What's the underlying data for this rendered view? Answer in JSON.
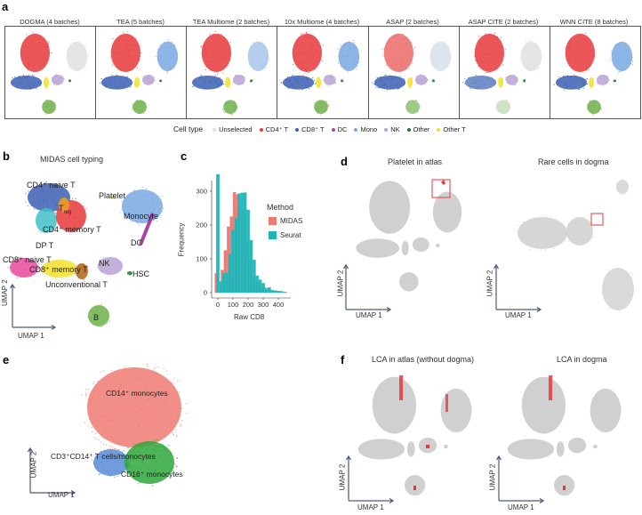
{
  "panel_a": {
    "label": "a",
    "panels": [
      "DOGMA (4 batches)",
      "TEA (5 batches)",
      "TEA Multiome (2 batches)",
      "10x Multiome (4 batches)",
      "ASAP (2 batches)",
      "ASAP CITE (2 batches)",
      "WNN CITE (8 batches)"
    ],
    "legend_title": "Cell type",
    "legend": [
      {
        "name": "Unselected",
        "color": "#e0e0e0"
      },
      {
        "name": "CD4⁺ T",
        "color": "#e8393b"
      },
      {
        "name": "CD8⁺ T",
        "color": "#3c5fb4"
      },
      {
        "name": "DC",
        "color": "#a8469e"
      },
      {
        "name": "Mono",
        "color": "#79a8e0"
      },
      {
        "name": "NK",
        "color": "#b9a3d6"
      },
      {
        "name": "Other",
        "color": "#1e7b32"
      },
      {
        "name": "Other T",
        "color": "#f2e22a"
      }
    ]
  },
  "panel_b": {
    "label": "b",
    "title": "MIDAS cell typing",
    "clusters": [
      "CD4⁺ naive T",
      "T",
      "reg",
      "CD4⁺ memory T",
      "Platelet",
      "Monocyte",
      "DC",
      "DP T",
      "CD8⁺ naive T",
      "CD8⁺ memory T",
      "NK",
      "HSC",
      "Unconventional T",
      "B"
    ],
    "xlabel": "UMAP 1",
    "ylabel": "UMAP 2"
  },
  "panel_c": {
    "label": "c"
  },
  "chart_data": {
    "type": "bar",
    "subtype": "histogram",
    "xlabel": "Raw CD8",
    "ylabel": "Frequency",
    "xlim": [
      -20,
      470
    ],
    "ylim": [
      0,
      360
    ],
    "xticks": [
      0,
      100,
      200,
      300,
      400
    ],
    "yticks": [
      0,
      100,
      200,
      300
    ],
    "grid": false,
    "legend_title": "Method",
    "legend_position": "right",
    "bin_width": 20,
    "series": [
      {
        "name": "MIDAS",
        "color": "#ee7a72",
        "bins": [
          -10,
          10,
          30,
          50,
          70,
          90,
          110,
          130,
          150,
          170,
          190,
          210,
          230,
          250,
          270,
          290,
          310,
          330,
          350,
          370,
          390,
          410,
          430,
          450
        ],
        "values": [
          57,
          5,
          67,
          125,
          195,
          225,
          297,
          290,
          245,
          245,
          150,
          95,
          50,
          38,
          28,
          12,
          15,
          8,
          6,
          5,
          4,
          3,
          2,
          1
        ]
      },
      {
        "name": "Seurat",
        "color": "#1fb5b8",
        "bins": [
          0,
          20,
          40,
          60,
          80,
          100,
          120,
          140,
          160,
          180,
          200,
          220,
          240,
          260,
          280,
          300,
          320,
          340,
          360,
          380,
          400,
          420,
          440
        ],
        "values": [
          350,
          33,
          58,
          60,
          115,
          185,
          222,
          293,
          295,
          296,
          245,
          155,
          97,
          50,
          38,
          28,
          12,
          15,
          7,
          6,
          5,
          4,
          2
        ]
      }
    ]
  },
  "panel_d": {
    "label": "d",
    "titles": [
      "Platelet in atlas",
      "Rare cells in dogma"
    ],
    "xlabel": "UMAP 1",
    "ylabel": "UMAP 2",
    "highlight_color": "#e8393b"
  },
  "panel_e": {
    "label": "e",
    "clusters": [
      "CD14⁺ monocytes",
      "CD3⁺CD14⁺ T cells/monocytes",
      "CD16⁺ monocytes"
    ],
    "colors": [
      "#ee7a72",
      "#5b8bd6",
      "#2ea83a"
    ],
    "xlabel": "UMAP 1",
    "ylabel": "UMAP 2"
  },
  "panel_f": {
    "label": "f",
    "titles": [
      "LCA in atlas (without dogma)",
      "LCA in dogma"
    ],
    "xlabel": "UMAP 1",
    "ylabel": "UMAP 2"
  }
}
